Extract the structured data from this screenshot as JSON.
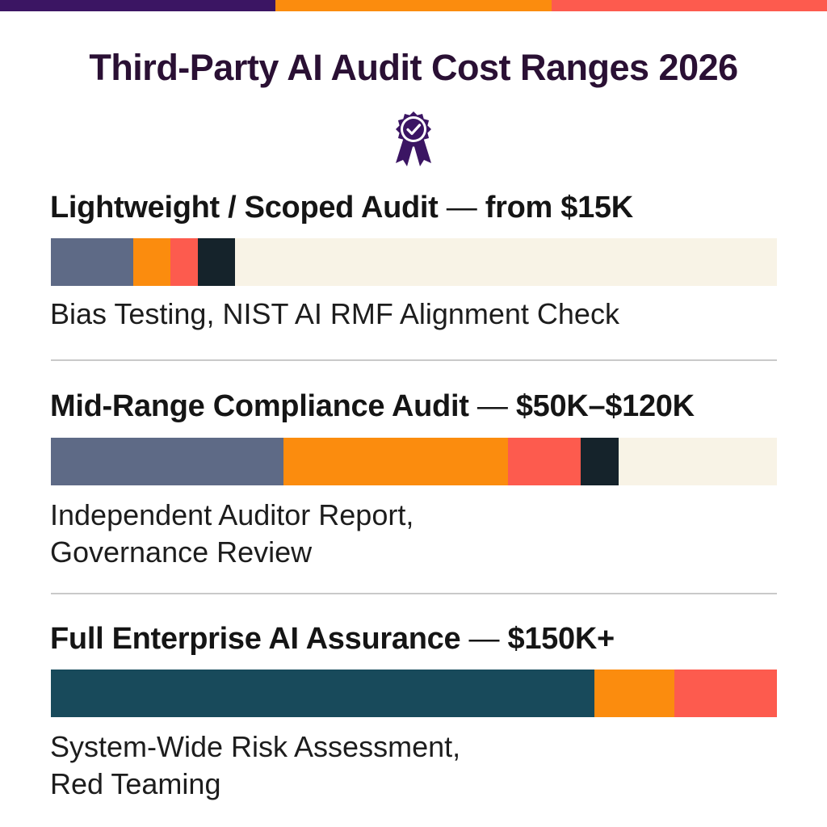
{
  "title": "Third-Party AI Audit Cost Ranges 2026",
  "badge_icon": "award-ribbon-check-icon",
  "colors": {
    "purple": "#3b1563",
    "orange": "#fb8c0e",
    "coral": "#fd5b4e",
    "slate": "#5e6a86",
    "dark": "#15232b",
    "teal": "#184a5b",
    "track": "#f8f3e6"
  },
  "top_stripe": [
    "#3b1563",
    "#fb8c0e",
    "#fd5b4e"
  ],
  "chart_data": {
    "type": "bar",
    "orientation": "horizontal-stacked",
    "title": "Third-Party AI Audit Cost Ranges 2026",
    "categories": [
      "Lightweight / Scoped Audit",
      "Mid-Range Compliance Audit",
      "Full Enterprise AI Assurance"
    ],
    "prices": [
      "from $15K",
      "$50K–$120K",
      "$150K+"
    ],
    "descriptions": [
      [
        "Bias Testing, NIST AI RMF Alignment Check"
      ],
      [
        "Independent Auditor Report,",
        "Governance Review"
      ],
      [
        "System-Wide Risk Assessment,",
        "Red Teaming"
      ]
    ],
    "bars": [
      {
        "segments": [
          {
            "color": "#5e6a86",
            "value": 0.114
          },
          {
            "color": "#fb8c0e",
            "value": 0.051
          },
          {
            "color": "#fd5b4e",
            "value": 0.038
          },
          {
            "color": "#15232b",
            "value": 0.051
          }
        ]
      },
      {
        "segments": [
          {
            "color": "#5e6a86",
            "value": 0.32
          },
          {
            "color": "#fb8c0e",
            "value": 0.31
          },
          {
            "color": "#fd5b4e",
            "value": 0.1
          },
          {
            "color": "#15232b",
            "value": 0.052
          }
        ]
      },
      {
        "segments": [
          {
            "color": "#184a5b",
            "value": 0.749
          },
          {
            "color": "#fb8c0e",
            "value": 0.11
          },
          {
            "color": "#fd5b4e",
            "value": 0.141
          }
        ]
      }
    ]
  }
}
